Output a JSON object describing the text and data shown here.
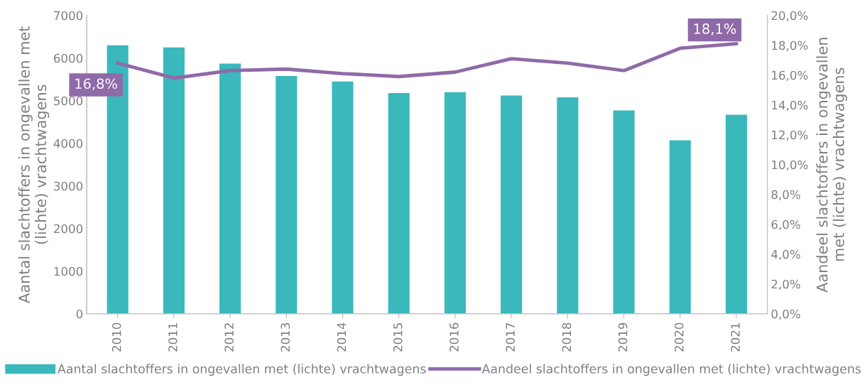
{
  "chart_data": {
    "type": "bar",
    "categories": [
      "2010",
      "2011",
      "2012",
      "2013",
      "2014",
      "2015",
      "2016",
      "2017",
      "2018",
      "2019",
      "2020",
      "2021"
    ],
    "series": [
      {
        "name": "Aantal slachtoffers in ongevallen met (lichte) vrachtwagens",
        "color": "#3ab8bc",
        "values": [
          6300,
          6250,
          5870,
          5580,
          5450,
          5180,
          5200,
          5120,
          5080,
          4770,
          4070,
          4670
        ]
      },
      {
        "name": "Aandeel slachtoffers in ongevallen met (lichte) vrachtwagens",
        "type": "line",
        "axis": "y2",
        "color": "#8f6aa8",
        "values": [
          16.8,
          15.8,
          16.3,
          16.4,
          16.1,
          15.9,
          16.2,
          17.1,
          16.8,
          16.3,
          17.8,
          18.1
        ],
        "value_labels": [
          "16,8%",
          null,
          null,
          null,
          null,
          null,
          null,
          null,
          null,
          null,
          null,
          "18,1%"
        ]
      }
    ],
    "ylabel": "Aantal slachtoffers in ongevallen met\n(lichte) vrachtwagens",
    "y2label": "Aandeel slachtoffers in ongevallen\nmet (lichte) vrachtwagens",
    "ylim": [
      0,
      7000
    ],
    "yticks": [
      0,
      1000,
      2000,
      3000,
      4000,
      5000,
      6000,
      7000
    ],
    "y2lim": [
      0,
      20
    ],
    "y2ticks": [
      {
        "value": 0,
        "label": "0,0%"
      },
      {
        "value": 2,
        "label": "2,0%"
      },
      {
        "value": 4,
        "label": "4,0%"
      },
      {
        "value": 6,
        "label": "6,0%"
      },
      {
        "value": 8,
        "label": "8,0%"
      },
      {
        "value": 10,
        "label": "10,0%"
      },
      {
        "value": 12,
        "label": "12,0%"
      },
      {
        "value": 14,
        "label": "14,0%"
      },
      {
        "value": 16,
        "label": "16,0%"
      },
      {
        "value": 18,
        "label": "18,0%"
      },
      {
        "value": 20,
        "label": "20,0%"
      }
    ],
    "grid": false,
    "legend": "bottom",
    "marker": "none",
    "line_style": "solid"
  }
}
